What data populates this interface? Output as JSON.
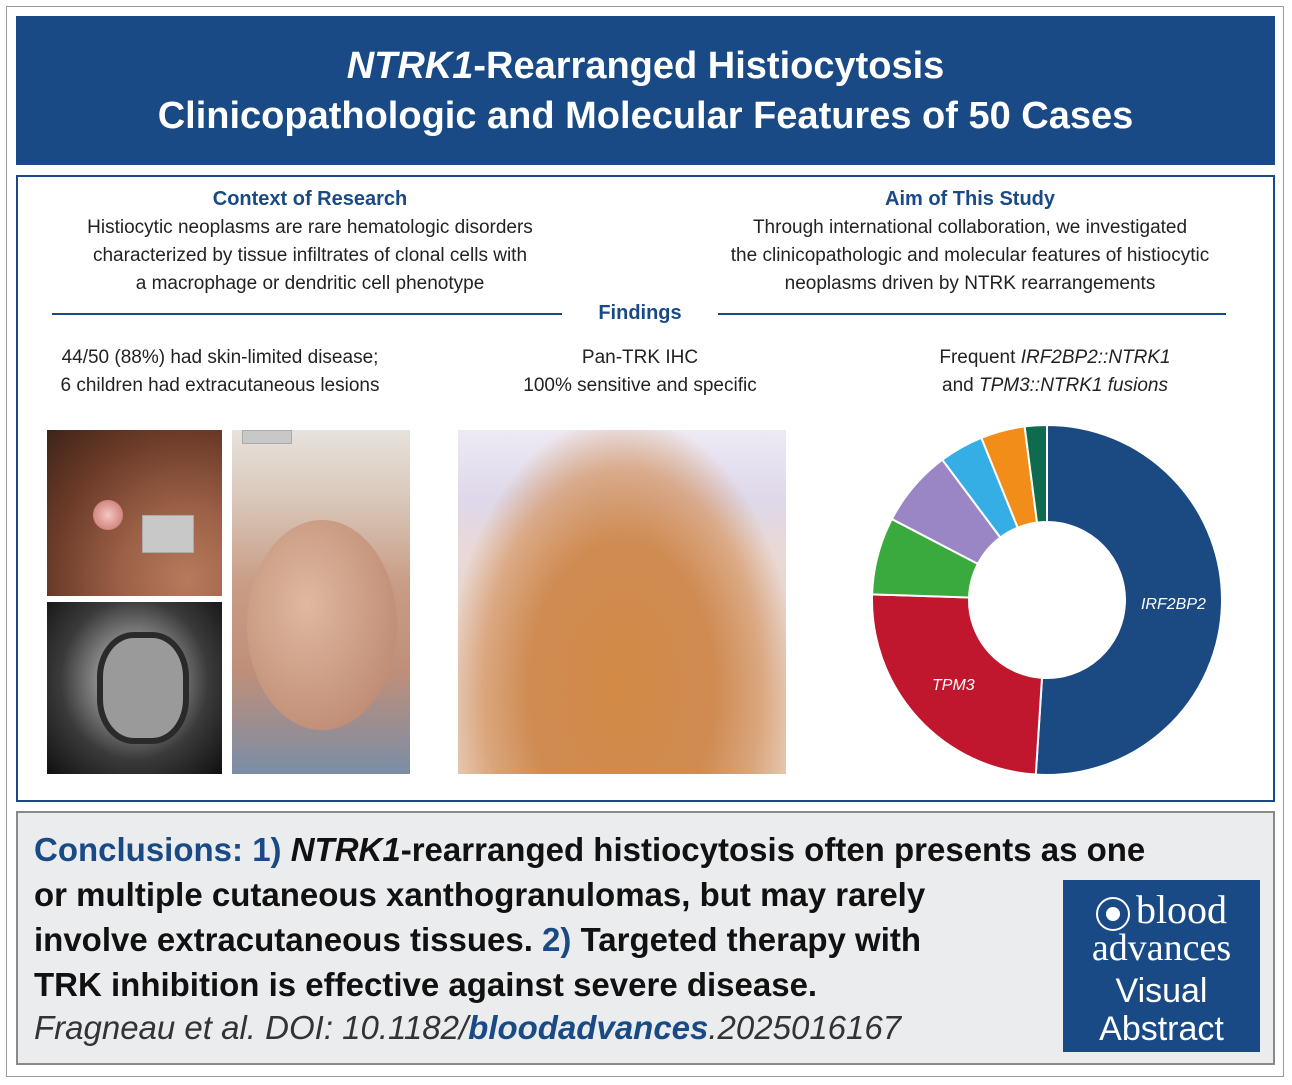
{
  "title": {
    "line1_italic": "NTRK1",
    "line1_rest": "-Rearranged Histiocytosis",
    "line2": "Clinicopathologic and Molecular Features of 50 Cases"
  },
  "context": {
    "heading": "Context of Research",
    "lines": [
      "Histiocytic neoplasms are rare hematologic disorders",
      "characterized by tissue infiltrates of clonal cells with",
      "a macrophage or dendritic cell phenotype"
    ]
  },
  "aim": {
    "heading": "Aim of This Study",
    "lines": [
      "Through international collaboration, we investigated",
      "the clinicopathologic and molecular features of histiocytic",
      "neoplasms driven by NTRK rearrangements"
    ]
  },
  "findings": {
    "heading": "Findings",
    "col1": [
      "44/50 (88%) had skin-limited disease;",
      "6 children had extracutaneous lesions"
    ],
    "col2": [
      "Pan-TRK IHC",
      "100% sensitive and specific"
    ],
    "col3_line1_plain": "Frequent ",
    "col3_line1_italic": "IRF2BP2::NTRK1",
    "col3_line2_plain": "and ",
    "col3_line2_italic": "TPM3::NTRK1 fusions"
  },
  "chart_data": {
    "type": "pie",
    "donut": true,
    "slices": [
      {
        "label": "IRF2BP2",
        "value": 50,
        "color": "#1b4a83"
      },
      {
        "label": "TPM3",
        "value": 24,
        "color": "#c0172e"
      },
      {
        "label": "",
        "value": 7,
        "color": "#3aaa3e"
      },
      {
        "label": "",
        "value": 7,
        "color": "#9a86c4"
      },
      {
        "label": "",
        "value": 4,
        "color": "#35aee6"
      },
      {
        "label": "",
        "value": 4,
        "color": "#f38d1a"
      },
      {
        "label": "",
        "value": 2,
        "color": "#0f6b4e"
      }
    ]
  },
  "conclusions": {
    "label": "Conclusions:",
    "n1": "1)",
    "p1_italic": "NTRK1",
    "p1_rest_line1": "-rearranged histiocytosis often presents as one",
    "line2": "or multiple cutaneous xanthogranulomas, but may rarely",
    "line3_a": "involve extracutaneous tissues.",
    "n2": "2)",
    "line3_b": "Targeted therapy with",
    "line4": "TRK inhibition is effective against severe disease."
  },
  "citation": {
    "prefix": "Fragneau et al. DOI: 10.1182/",
    "journal": "bloodadvances",
    "suffix": ".2025016167"
  },
  "logo": {
    "line1": "blood",
    "line2": "advances",
    "line3": "Visual",
    "line4": "Abstract"
  },
  "colors": {
    "brand": "#1a4a85"
  }
}
